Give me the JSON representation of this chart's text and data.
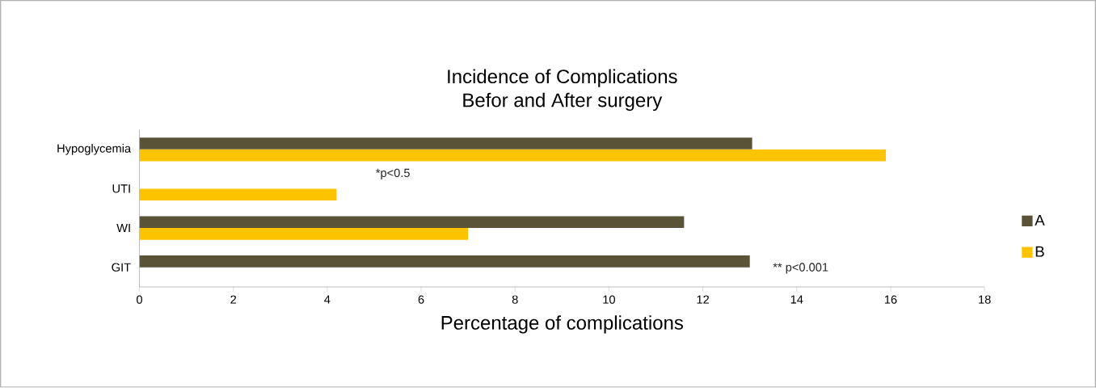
{
  "chart_data": {
    "type": "bar",
    "orientation": "horizontal",
    "title": "Incidence of Complications",
    "subtitle": "Befor and After surgery",
    "xlabel": "Percentage of complications",
    "categories": [
      "Hypoglycemia",
      "UTI",
      "WI",
      "GIT"
    ],
    "series": [
      {
        "name": "A",
        "color": "#5a5338",
        "values": [
          13.05,
          0,
          11.6,
          13.0
        ]
      },
      {
        "name": "B",
        "color": "#fcc400",
        "values": [
          15.9,
          4.2,
          7.0,
          0
        ]
      }
    ],
    "xlim": [
      0,
      18
    ],
    "xticks": [
      0,
      2,
      4,
      6,
      8,
      10,
      12,
      14,
      16,
      18
    ],
    "grid": false,
    "legend": "right",
    "annotations": [
      "*p<0.5",
      "** p<0.001"
    ]
  }
}
